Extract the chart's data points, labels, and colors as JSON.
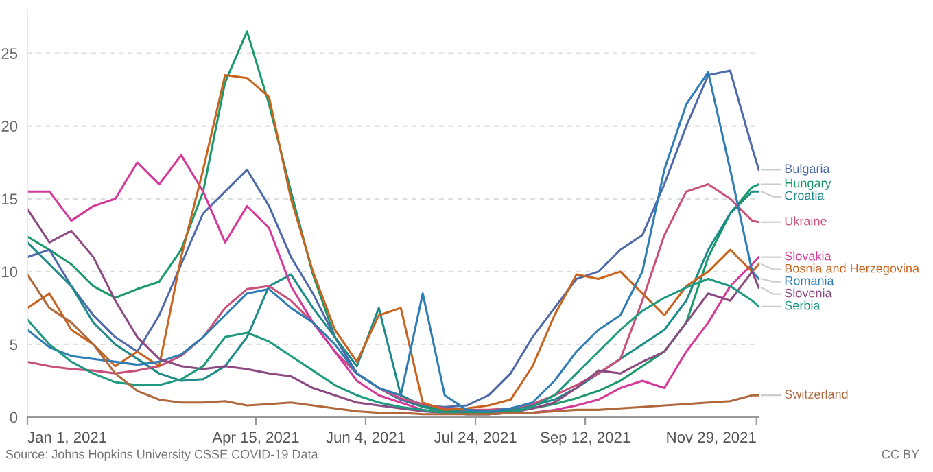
{
  "chart_data": {
    "type": "line",
    "x": [
      "2021-01-01",
      "2021-01-11",
      "2021-01-21",
      "2021-01-31",
      "2021-02-10",
      "2021-02-20",
      "2021-03-02",
      "2021-03-12",
      "2021-03-22",
      "2021-04-01",
      "2021-04-11",
      "2021-04-21",
      "2021-05-01",
      "2021-05-11",
      "2021-05-21",
      "2021-05-31",
      "2021-06-10",
      "2021-06-20",
      "2021-06-30",
      "2021-07-10",
      "2021-07-20",
      "2021-07-30",
      "2021-08-09",
      "2021-08-19",
      "2021-08-29",
      "2021-09-08",
      "2021-09-18",
      "2021-09-28",
      "2021-10-08",
      "2021-10-18",
      "2021-10-28",
      "2021-11-07",
      "2021-11-17",
      "2021-11-27",
      "2021-11-30"
    ],
    "series": [
      {
        "name": "Hungary",
        "color": "#1a9a6c",
        "values": [
          12.4,
          11.5,
          10.5,
          9,
          8.2,
          8.8,
          9.3,
          11.5,
          15.5,
          23,
          26.5,
          21.5,
          15.5,
          9.8,
          5.5,
          3,
          2,
          1.2,
          0.7,
          0.4,
          0.3,
          0.3,
          0.4,
          0.6,
          0.9,
          1.3,
          1.8,
          2.5,
          3.5,
          4.5,
          6.5,
          11,
          14,
          15.8,
          16
        ]
      },
      {
        "name": "Bulgaria",
        "color": "#4f6aa9",
        "values": [
          11,
          11.5,
          9,
          7,
          5.5,
          4.5,
          7,
          10.5,
          14,
          15.5,
          17,
          14.5,
          11,
          8.5,
          5.5,
          3,
          2,
          1.2,
          0.8,
          0.7,
          0.8,
          1.5,
          3,
          5.5,
          7.5,
          9.5,
          10,
          11.5,
          12.5,
          16,
          20,
          23.5,
          23.8,
          18.5,
          17
        ]
      },
      {
        "name": "Croatia",
        "color": "#1e8a8a",
        "values": [
          12,
          10.5,
          9,
          6.5,
          5,
          4,
          3,
          2.5,
          2.6,
          3.5,
          5.5,
          9,
          9.8,
          7.5,
          5.5,
          3.5,
          7.5,
          1.5,
          0.8,
          0.5,
          0.4,
          0.4,
          0.5,
          0.8,
          1.2,
          2,
          3,
          4,
          5,
          6,
          8,
          11.5,
          14,
          15.5,
          15.5
        ]
      },
      {
        "name": "Ukraine",
        "color": "#c8507a",
        "values": [
          3.8,
          3.5,
          3.3,
          3.2,
          3,
          3.2,
          3.5,
          4.2,
          5.5,
          7.5,
          8.8,
          9,
          8,
          6.5,
          4.5,
          3,
          2,
          1.3,
          0.9,
          0.6,
          0.5,
          0.5,
          0.6,
          0.9,
          1.5,
          2.2,
          3,
          4,
          8,
          12.5,
          15.5,
          16,
          15,
          13.5,
          13.4
        ]
      },
      {
        "name": "Slovakia",
        "color": "#d33a9a",
        "values": [
          15.5,
          15.5,
          13.5,
          14.5,
          15,
          17.5,
          16,
          18,
          15.5,
          12,
          14.5,
          13,
          9,
          6.5,
          4.5,
          2.5,
          1.5,
          1,
          0.5,
          0.3,
          0.2,
          0.2,
          0.3,
          0.3,
          0.5,
          0.8,
          1.2,
          2,
          2.5,
          2,
          4.5,
          6.5,
          9,
          10.5,
          11
        ]
      },
      {
        "name": "Bosnia and Herzegovina",
        "color": "#c8641e",
        "values": [
          7.5,
          8.5,
          6,
          5,
          3.5,
          4.5,
          3.5,
          11,
          17,
          23.5,
          23.3,
          22,
          15,
          10,
          6,
          3.8,
          7,
          7.5,
          1,
          0.5,
          0.6,
          0.8,
          1.2,
          3.5,
          7,
          9.8,
          9.5,
          10,
          8.5,
          7,
          9,
          10,
          11.5,
          10,
          10.5
        ]
      },
      {
        "name": "Romania",
        "color": "#2f7db5",
        "values": [
          6,
          4.8,
          4.2,
          4,
          3.8,
          3.6,
          3.8,
          4.3,
          5.5,
          7,
          8.5,
          8.8,
          7.5,
          6.5,
          5,
          3,
          2,
          1.5,
          8.5,
          1.5,
          0.5,
          0.4,
          0.6,
          1,
          2.5,
          4.5,
          6,
          7,
          10,
          17,
          21.5,
          23.7,
          17,
          10,
          9.5
        ]
      },
      {
        "name": "Slovenia",
        "color": "#8c4a82",
        "values": [
          14.3,
          12,
          12.8,
          11,
          8,
          5.5,
          4,
          3.5,
          3.3,
          3.5,
          3.3,
          3,
          2.8,
          2,
          1.5,
          1,
          0.8,
          0.6,
          0.4,
          0.3,
          0.2,
          0.2,
          0.3,
          0.6,
          1,
          2,
          3.2,
          3,
          3.8,
          4.5,
          6.5,
          8.5,
          8,
          10,
          8.9
        ]
      },
      {
        "name": "Serbia",
        "color": "#1d9a80",
        "values": [
          6.7,
          5,
          3.8,
          3,
          2.4,
          2.2,
          2.2,
          2.6,
          3.5,
          5.5,
          5.8,
          5.2,
          4.2,
          3.2,
          2.2,
          1.5,
          1,
          0.7,
          0.5,
          0.3,
          0.2,
          0.2,
          0.3,
          0.7,
          1.5,
          3,
          4.5,
          6,
          7.3,
          8.2,
          8.9,
          9.5,
          9,
          8,
          7.6
        ]
      },
      {
        "name": "Switzerland",
        "color": "#b0683d",
        "values": [
          9.8,
          7.5,
          6.5,
          5,
          3,
          1.8,
          1.2,
          1,
          1,
          1.1,
          0.8,
          0.9,
          1,
          0.8,
          0.6,
          0.4,
          0.3,
          0.3,
          0.2,
          0.2,
          0.2,
          0.2,
          0.3,
          0.3,
          0.4,
          0.5,
          0.5,
          0.6,
          0.7,
          0.8,
          0.9,
          1,
          1.1,
          1.5,
          1.5
        ]
      }
    ],
    "xlim": [
      "2021-01-01",
      "2021-11-30"
    ],
    "xticks": [
      {
        "value": "2021-01-01",
        "label": "Jan 1, 2021"
      },
      {
        "value": "2021-04-15",
        "label": "Apr 15, 2021"
      },
      {
        "value": "2021-06-04",
        "label": "Jun 4, 2021"
      },
      {
        "value": "2021-07-24",
        "label": "Jul 24, 2021"
      },
      {
        "value": "2021-09-12",
        "label": "Sep 12, 2021"
      },
      {
        "value": "2021-11-29",
        "label": "Nov 29, 2021"
      }
    ],
    "ylim": [
      0,
      28
    ],
    "yticks": [
      0,
      5,
      10,
      15,
      20,
      25
    ],
    "grid": "y",
    "line_style": "solid",
    "annotations": [
      "Source: Johns Hopkins University CSSE COVID-19 Data",
      "CC BY"
    ]
  }
}
